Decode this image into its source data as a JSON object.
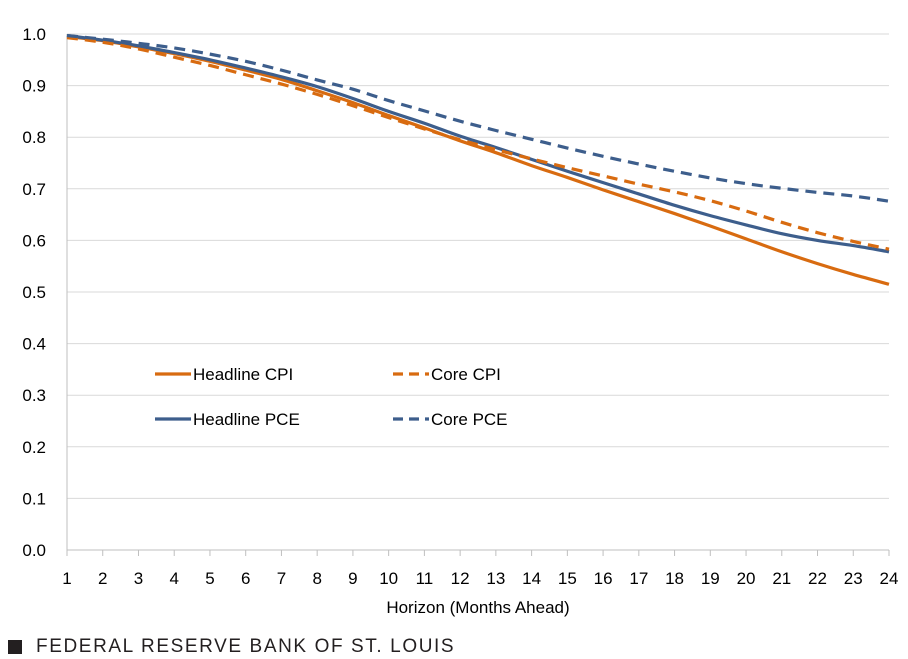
{
  "chart_data": {
    "type": "line",
    "title": "",
    "xlabel": "Horizon (Months Ahead)",
    "ylabel": "",
    "x": [
      1,
      2,
      3,
      4,
      5,
      6,
      7,
      8,
      9,
      10,
      11,
      12,
      13,
      14,
      15,
      16,
      17,
      18,
      19,
      20,
      21,
      22,
      23,
      24
    ],
    "xlim": [
      1,
      24
    ],
    "ylim": [
      0.0,
      1.0
    ],
    "yticks": [
      "0.0",
      "0.1",
      "0.2",
      "0.3",
      "0.4",
      "0.5",
      "0.6",
      "0.7",
      "0.8",
      "0.9",
      "1.0"
    ],
    "grid": "horizontal",
    "legend_position": "center-left",
    "series": [
      {
        "name": "Headline CPI",
        "color": "#d86b10",
        "dashed": false,
        "values": [
          0.995,
          0.987,
          0.975,
          0.962,
          0.947,
          0.93,
          0.912,
          0.89,
          0.867,
          0.842,
          0.818,
          0.793,
          0.77,
          0.745,
          0.722,
          0.698,
          0.675,
          0.652,
          0.628,
          0.603,
          0.578,
          0.555,
          0.534,
          0.515
        ]
      },
      {
        "name": "Core CPI",
        "color": "#d86b10",
        "dashed": true,
        "values": [
          0.993,
          0.984,
          0.971,
          0.955,
          0.939,
          0.921,
          0.903,
          0.883,
          0.861,
          0.838,
          0.816,
          0.795,
          0.776,
          0.758,
          0.741,
          0.725,
          0.709,
          0.694,
          0.677,
          0.657,
          0.635,
          0.615,
          0.598,
          0.583
        ]
      },
      {
        "name": "Headline PCE",
        "color": "#3d5e8c",
        "dashed": false,
        "values": [
          0.997,
          0.988,
          0.977,
          0.964,
          0.95,
          0.934,
          0.917,
          0.898,
          0.875,
          0.85,
          0.827,
          0.802,
          0.78,
          0.757,
          0.734,
          0.712,
          0.69,
          0.668,
          0.648,
          0.63,
          0.613,
          0.6,
          0.59,
          0.578
        ]
      },
      {
        "name": "Core PCE",
        "color": "#3d5e8c",
        "dashed": true,
        "values": [
          0.997,
          0.99,
          0.982,
          0.973,
          0.961,
          0.947,
          0.93,
          0.911,
          0.893,
          0.871,
          0.851,
          0.831,
          0.813,
          0.796,
          0.779,
          0.763,
          0.748,
          0.734,
          0.721,
          0.71,
          0.701,
          0.693,
          0.686,
          0.676
        ]
      }
    ]
  },
  "footer": {
    "source": "FEDERAL RESERVE BANK OF ST. LOUIS"
  }
}
